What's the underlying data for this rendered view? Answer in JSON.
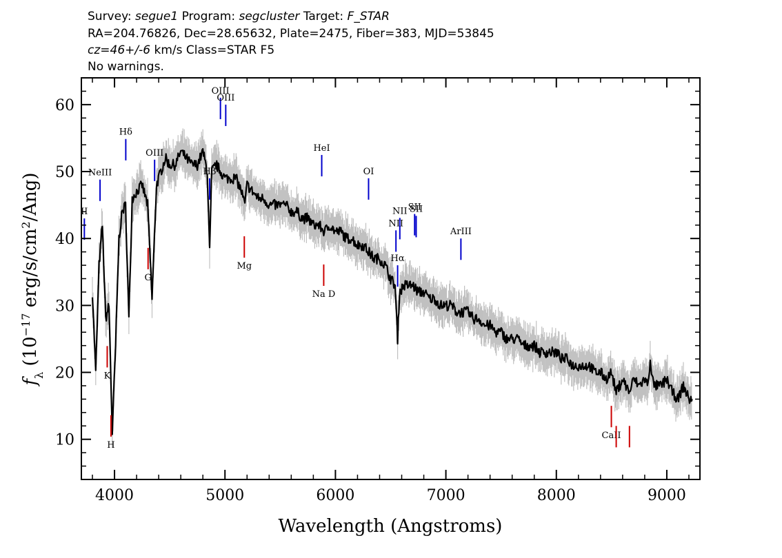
{
  "header": {
    "survey_label": "Survey:",
    "survey": "segue1",
    "program_label": "Program:",
    "program": "segcluster",
    "target_label": "Target:",
    "target": "F_STAR",
    "line2": "RA=204.76826, Dec=28.65632, Plate=2475, Fiber=383, MJD=53845",
    "cz": "cz=46+/-6",
    "line3_rest": " km/s Class=STAR F5",
    "line4": "No warnings."
  },
  "colors": {
    "flux": "#000000",
    "error_band": "#c0c0c0",
    "emission_line": "#0000cc",
    "absorption_line": "#cc0000",
    "frame": "#000000"
  },
  "chart_data": {
    "type": "line",
    "xlabel": "Wavelength (Angstroms)",
    "ylabel": "f_λ (10^-17 erg/s/cm²/Ang)",
    "xlim": [
      3700,
      9300
    ],
    "ylim": [
      4,
      64
    ],
    "x_ticks": [
      4000,
      5000,
      6000,
      7000,
      8000,
      9000
    ],
    "x_tick_labels": [
      "4000",
      "5000",
      "6000",
      "7000",
      "8000",
      "9000"
    ],
    "y_ticks": [
      10,
      20,
      30,
      40,
      50,
      60
    ],
    "y_tick_labels": [
      "10",
      "20",
      "30",
      "40",
      "50",
      "60"
    ],
    "grid": false,
    "spectrum_x": [
      3800,
      3830,
      3860,
      3890,
      3920,
      3950,
      3980,
      4010,
      4040,
      4070,
      4100,
      4130,
      4160,
      4200,
      4250,
      4300,
      4340,
      4380,
      4420,
      4460,
      4500,
      4550,
      4600,
      4650,
      4700,
      4750,
      4800,
      4840,
      4861,
      4880,
      4920,
      4960,
      5000,
      5050,
      5100,
      5150,
      5180,
      5200,
      5250,
      5300,
      5350,
      5400,
      5450,
      5500,
      5550,
      5600,
      5650,
      5700,
      5750,
      5800,
      5850,
      5900,
      5950,
      6000,
      6050,
      6100,
      6150,
      6200,
      6250,
      6300,
      6350,
      6400,
      6450,
      6500,
      6540,
      6563,
      6580,
      6620,
      6660,
      6700,
      6750,
      6800,
      6850,
      6900,
      6950,
      7000,
      7050,
      7100,
      7150,
      7200,
      7250,
      7300,
      7350,
      7400,
      7450,
      7500,
      7550,
      7600,
      7650,
      7700,
      7750,
      7800,
      7850,
      7900,
      7950,
      8000,
      8050,
      8100,
      8150,
      8200,
      8250,
      8300,
      8350,
      8400,
      8450,
      8498,
      8542,
      8600,
      8662,
      8700,
      8750,
      8800,
      8830,
      8850,
      8880,
      8920,
      8950,
      9000,
      9050,
      9100,
      9150,
      9200,
      9230
    ],
    "spectrum_y": [
      32,
      20,
      36,
      42,
      28,
      30,
      11,
      24,
      40,
      44,
      45,
      28,
      46,
      47,
      48,
      45,
      31,
      48,
      50,
      52,
      51,
      51,
      53,
      52,
      51,
      51,
      53,
      50,
      38,
      50,
      51,
      50,
      49,
      49,
      49,
      47,
      45,
      48,
      47,
      46,
      46,
      45,
      45,
      45,
      45,
      44,
      44,
      43,
      43,
      42,
      42,
      41,
      42,
      41,
      41,
      40,
      40,
      39,
      39,
      38,
      37,
      37,
      36,
      34,
      33,
      25,
      32,
      33,
      33,
      33,
      32,
      32,
      31,
      31,
      30,
      30,
      30,
      29,
      29,
      29,
      28,
      28,
      27,
      27,
      26,
      26,
      25,
      25,
      25,
      24,
      24,
      24,
      23,
      23,
      23,
      23,
      22,
      22,
      21,
      21,
      21,
      21,
      20,
      20,
      19,
      20,
      17,
      19,
      17,
      19,
      18,
      19,
      18,
      22,
      18,
      18,
      18,
      19,
      17,
      16,
      18,
      16,
      16
    ],
    "emission_lines": [
      {
        "label": "NeIII",
        "x": 3869
      },
      {
        "label": "Hδ",
        "x": 4102
      },
      {
        "label": "OIII",
        "x": 4363
      },
      {
        "label": "Hβ",
        "x": 4861
      },
      {
        "label": "OIII",
        "x": 4959
      },
      {
        "label": "OIII",
        "x": 5007
      },
      {
        "label": "HeI",
        "x": 5876
      },
      {
        "label": "OI",
        "x": 6300
      },
      {
        "label": "NII",
        "x": 6548
      },
      {
        "label": "Hα",
        "x": 6563
      },
      {
        "label": "NII",
        "x": 6583
      },
      {
        "label": "SII",
        "x": 6717
      },
      {
        "label": "SII",
        "x": 6731
      },
      {
        "label": "ArIII",
        "x": 7136
      },
      {
        "label": "II",
        "x": 3727
      }
    ],
    "absorption_lines": [
      {
        "label": "K",
        "x": 3934
      },
      {
        "label": "H",
        "x": 3968
      },
      {
        "label": "G",
        "x": 4304
      },
      {
        "label": "Mg",
        "x": 5175
      },
      {
        "label": "Na D",
        "x": 5894
      },
      {
        "label": "CaII",
        "x": 8498
      },
      {
        "label": "CaII",
        "x": 8542
      },
      {
        "label": "CaII",
        "x": 8662
      }
    ]
  }
}
